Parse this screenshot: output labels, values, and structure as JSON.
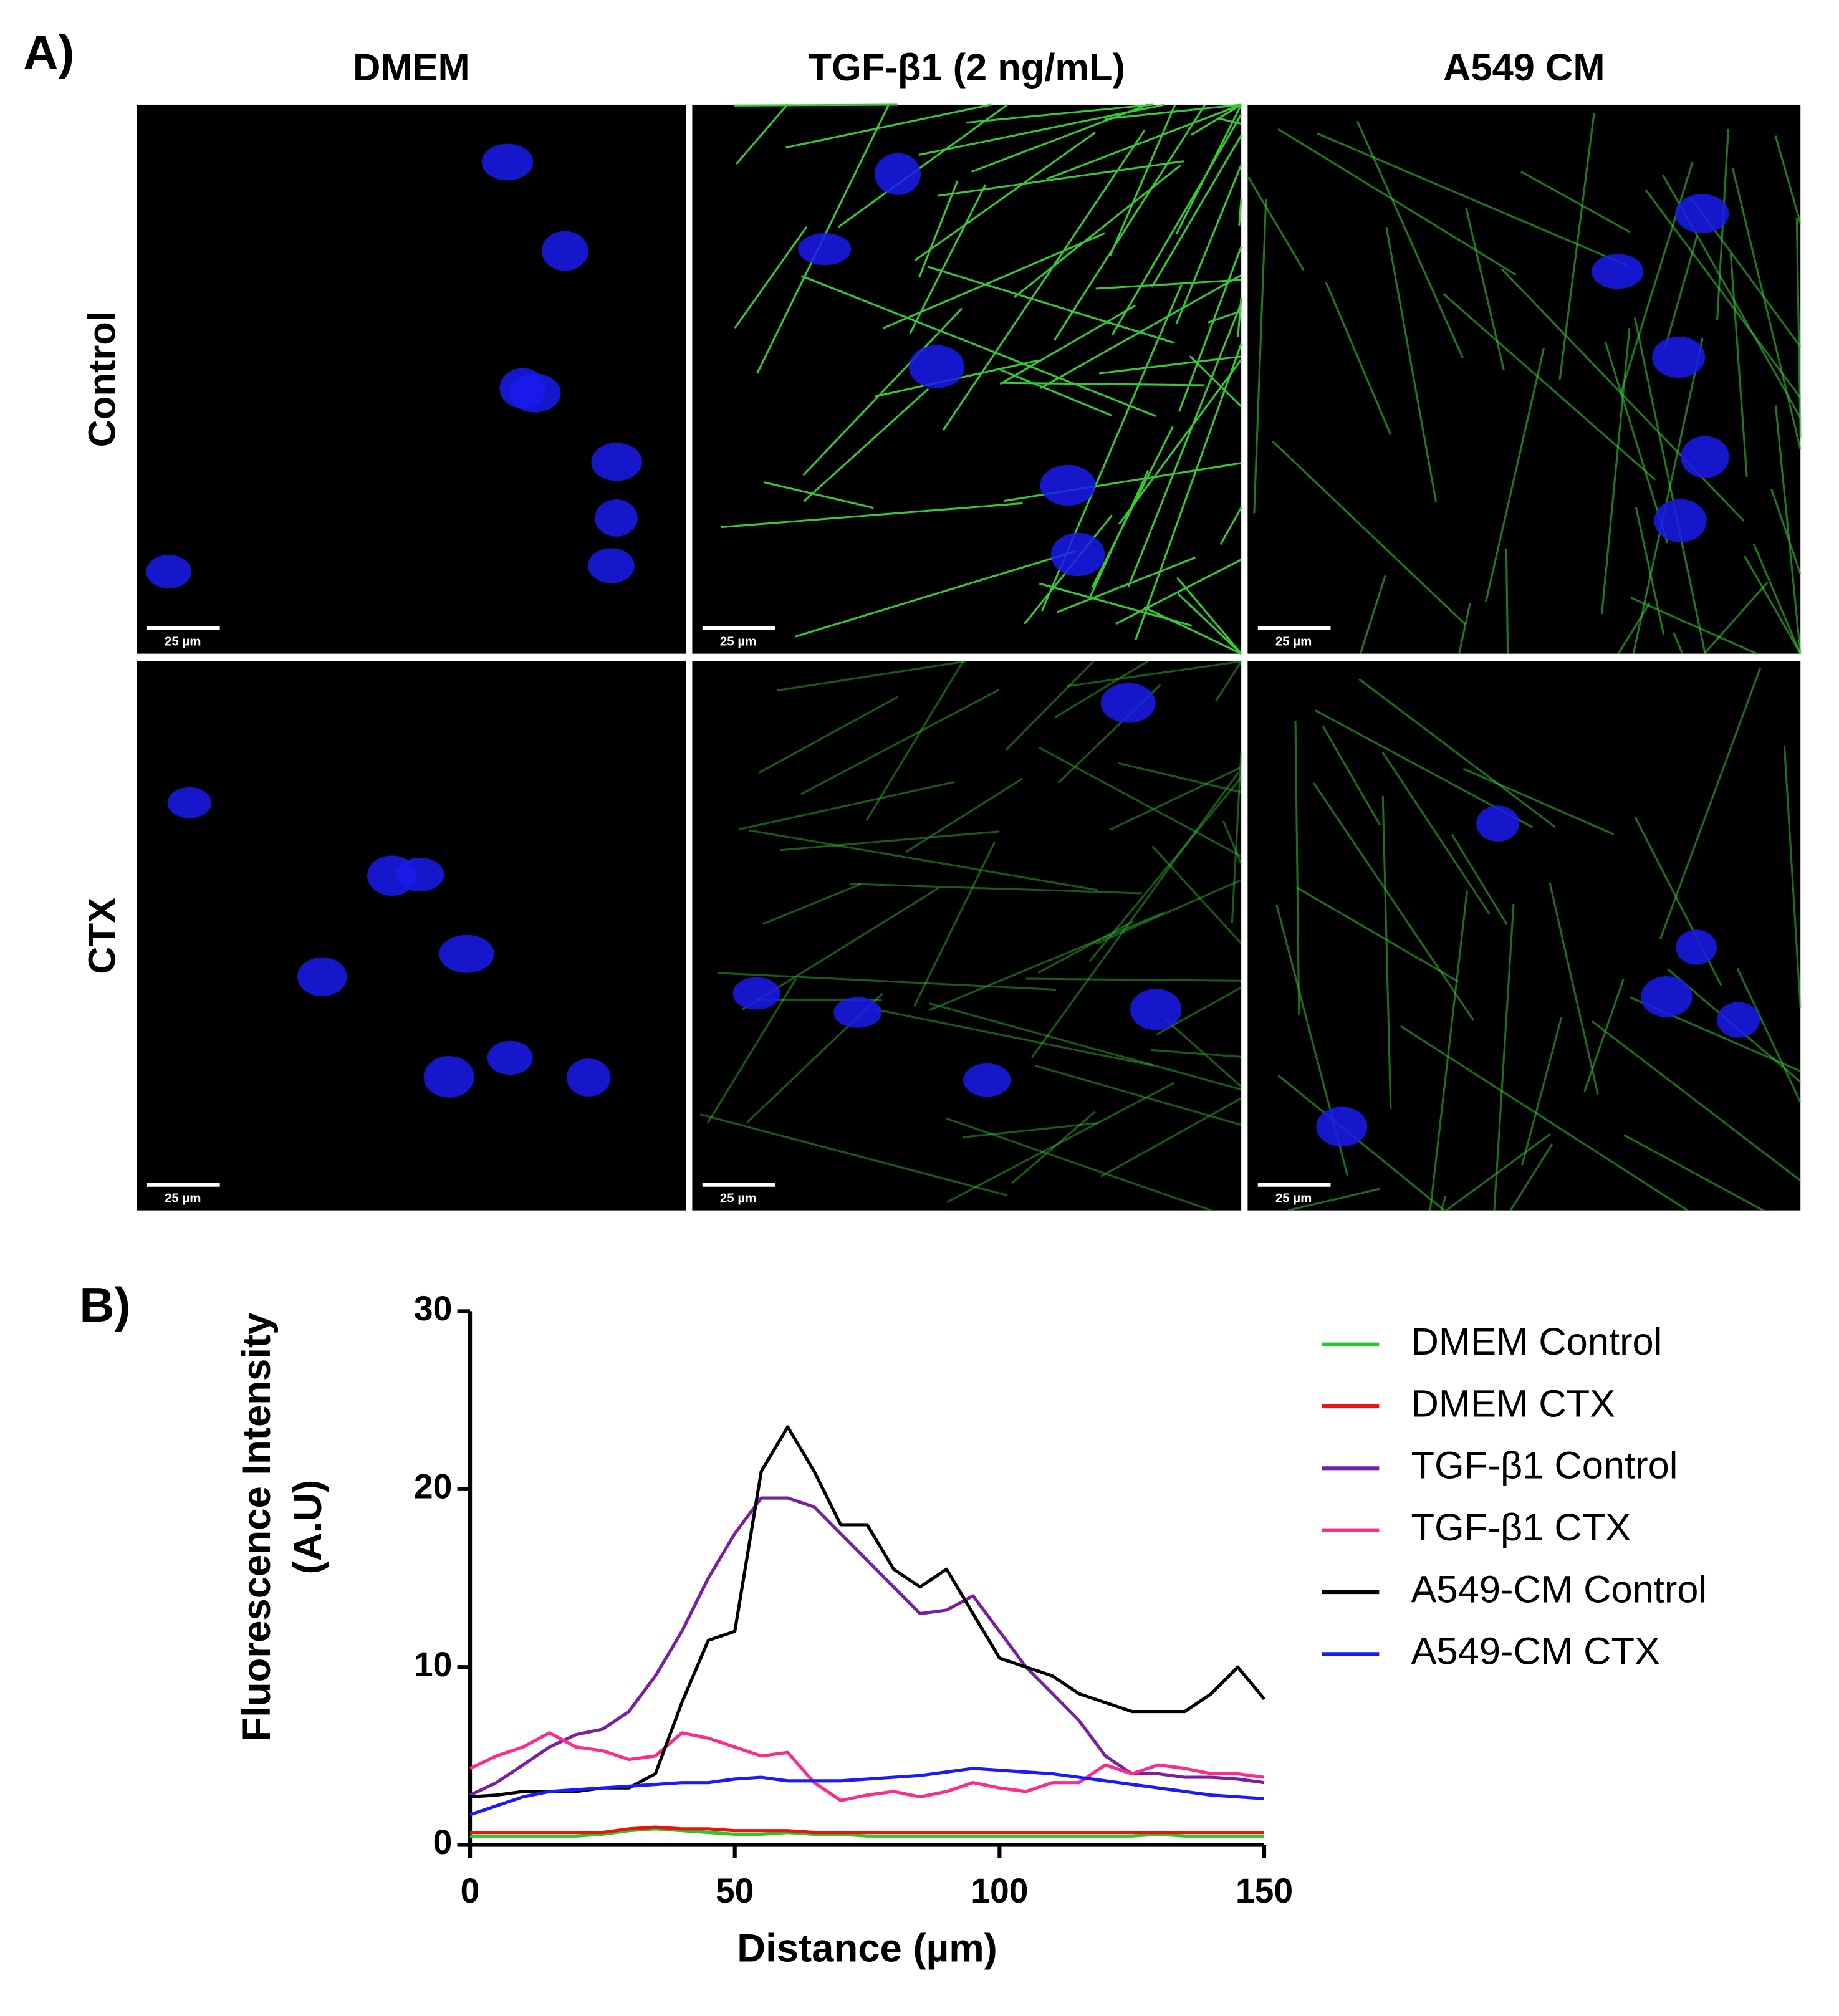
{
  "panel_a": {
    "label": "A)",
    "columns": [
      "DMEM",
      "TGF-β1 (2 ng/mL)",
      "A549 CM"
    ],
    "rows": [
      "Control",
      "CTX"
    ],
    "scale_bars": [
      "25 µm",
      "25 µm",
      "25 µm",
      "25 µm",
      "25 µm",
      "25 µm"
    ]
  },
  "chart_data": {
    "type": "line",
    "panel_label": "B)",
    "xlabel": "Distance (µm)",
    "ylabel": [
      "Fluorescence Intensity",
      "(A.U)"
    ],
    "x": [
      0,
      5,
      10,
      15,
      20,
      25,
      30,
      35,
      40,
      45,
      50,
      55,
      60,
      65,
      70,
      75,
      80,
      85,
      90,
      95,
      100,
      105,
      110,
      115,
      120,
      125,
      130,
      135,
      140,
      145,
      150
    ],
    "xlim": [
      0,
      150
    ],
    "xticks": [
      0,
      50,
      100,
      150
    ],
    "ylim": [
      0,
      30
    ],
    "yticks": [
      0,
      10,
      20,
      30
    ],
    "grid": false,
    "legend": "right",
    "series": [
      {
        "name": "DMEM Control",
        "color": "#22cc22",
        "values": [
          0.5,
          0.5,
          0.5,
          0.5,
          0.5,
          0.6,
          0.8,
          0.9,
          0.8,
          0.7,
          0.6,
          0.6,
          0.7,
          0.6,
          0.6,
          0.5,
          0.5,
          0.5,
          0.5,
          0.5,
          0.5,
          0.5,
          0.5,
          0.5,
          0.5,
          0.5,
          0.6,
          0.5,
          0.5,
          0.5,
          0.5
        ]
      },
      {
        "name": "DMEM CTX",
        "color": "#ee1111",
        "values": [
          0.7,
          0.7,
          0.7,
          0.7,
          0.7,
          0.7,
          0.9,
          1.0,
          0.9,
          0.9,
          0.8,
          0.8,
          0.8,
          0.7,
          0.7,
          0.7,
          0.7,
          0.7,
          0.7,
          0.7,
          0.7,
          0.7,
          0.7,
          0.7,
          0.7,
          0.7,
          0.7,
          0.7,
          0.7,
          0.7,
          0.7
        ]
      },
      {
        "name": "TGF-β1 Control",
        "color": "#7a1fa2",
        "values": [
          2.8,
          3.5,
          4.5,
          5.5,
          6.2,
          6.5,
          7.5,
          9.5,
          12,
          15,
          17.5,
          19.5,
          19.5,
          19,
          17.5,
          16,
          14.5,
          13,
          13.2,
          14,
          12,
          10,
          8.5,
          7,
          5,
          4,
          4,
          3.8,
          3.8,
          3.7,
          3.5
        ]
      },
      {
        "name": "TGF-β1 CTX",
        "color": "#ff2a8a",
        "values": [
          4.3,
          5,
          5.5,
          6.3,
          5.5,
          5.3,
          4.8,
          5,
          6.3,
          6,
          5.5,
          5,
          5.2,
          3.5,
          2.5,
          2.8,
          3,
          2.7,
          3,
          3.5,
          3.2,
          3,
          3.5,
          3.5,
          4.5,
          4,
          4.5,
          4.3,
          4,
          4,
          3.8
        ]
      },
      {
        "name": "A549-CM Control",
        "color": "#000000",
        "values": [
          2.7,
          2.8,
          3,
          3,
          3,
          3.2,
          3.2,
          4,
          8,
          11.5,
          12,
          21,
          23.5,
          21,
          18,
          18,
          15.5,
          14.5,
          15.5,
          13,
          10.5,
          10,
          9.5,
          8.5,
          8,
          7.5,
          7.5,
          7.5,
          8.5,
          10,
          8.2
        ]
      },
      {
        "name": "A549-CM CTX",
        "color": "#1a1aff",
        "values": [
          1.7,
          2.2,
          2.7,
          3,
          3.1,
          3.2,
          3.3,
          3.4,
          3.5,
          3.5,
          3.7,
          3.8,
          3.6,
          3.6,
          3.6,
          3.7,
          3.8,
          3.9,
          4.1,
          4.3,
          4.2,
          4.1,
          4,
          3.8,
          3.6,
          3.4,
          3.2,
          3,
          2.8,
          2.7,
          2.6
        ]
      }
    ]
  }
}
